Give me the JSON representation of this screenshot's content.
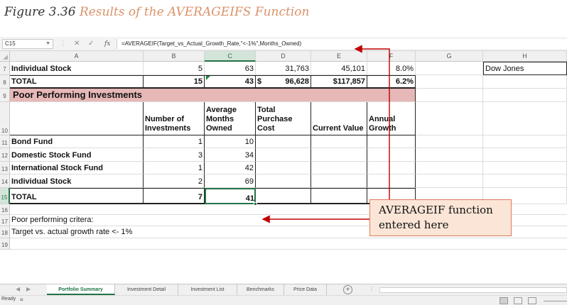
{
  "figure": {
    "label": "Figure 3.36",
    "title": "Results of the AVERAGEIFS Function"
  },
  "formula_bar": {
    "name_box": "C15",
    "fx_label": "fx",
    "formula": "=AVERAGEIF(Target_vs_Actual_Growth_Rate,\"<-1%\",Months_Owned)"
  },
  "columns": [
    "A",
    "B",
    "C",
    "D",
    "E",
    "F",
    "G",
    "H"
  ],
  "rows": [
    "7",
    "8",
    "9",
    "10",
    "11",
    "12",
    "13",
    "14",
    "15",
    "16",
    "17",
    "18",
    "19"
  ],
  "row7": {
    "a": "Individual Stock",
    "b": "5",
    "c": "63",
    "d": "31,763",
    "e": "45,101",
    "f": "8.0%",
    "h": "Dow Jones"
  },
  "row8": {
    "a": "TOTAL",
    "b": "15",
    "c": "43",
    "d_sign": "$",
    "d": "96,628",
    "e": "$117,857",
    "f": "6.2%"
  },
  "section_title": "Poor Performing Investments",
  "headers": {
    "b": "Number of Investments",
    "c": "Average Months Owned",
    "d": "Total Purchase Cost",
    "e": "Current Value",
    "f": "Annual Growth"
  },
  "data_rows": [
    {
      "name": "Bond Fund",
      "count": "1",
      "months": "10"
    },
    {
      "name": "Domestic Stock Fund",
      "count": "3",
      "months": "34"
    },
    {
      "name": "International Stock Fund",
      "count": "1",
      "months": "42"
    },
    {
      "name": "Individual Stock",
      "count": "2",
      "months": "69"
    }
  ],
  "total_row": {
    "name": "TOTAL",
    "count": "7",
    "months": "41"
  },
  "notes": [
    "Poor performing critera:",
    "Target vs. actual growth rate <- 1%"
  ],
  "callout": "AVERAGEIF function entered here",
  "sheet_tabs": [
    "Portfolio Summary",
    "Investment Detail",
    "Investment List",
    "Benchmarks",
    "Price Data"
  ],
  "active_tab": "Portfolio Summary",
  "status": {
    "text": "Ready"
  },
  "colors": {
    "excel_green": "#217346",
    "section_fill": "#e6b8b7",
    "callout_fill": "#fbe5d6",
    "arrow_red": "#c00000",
    "caption_accent": "#d9926a"
  },
  "icons": [
    "dropdown-arrow-icon",
    "cancel-x-icon",
    "enter-check-icon",
    "fx-icon",
    "add-sheet-icon",
    "macro-record-icon",
    "normal-view-icon",
    "page-layout-icon",
    "page-break-icon"
  ]
}
